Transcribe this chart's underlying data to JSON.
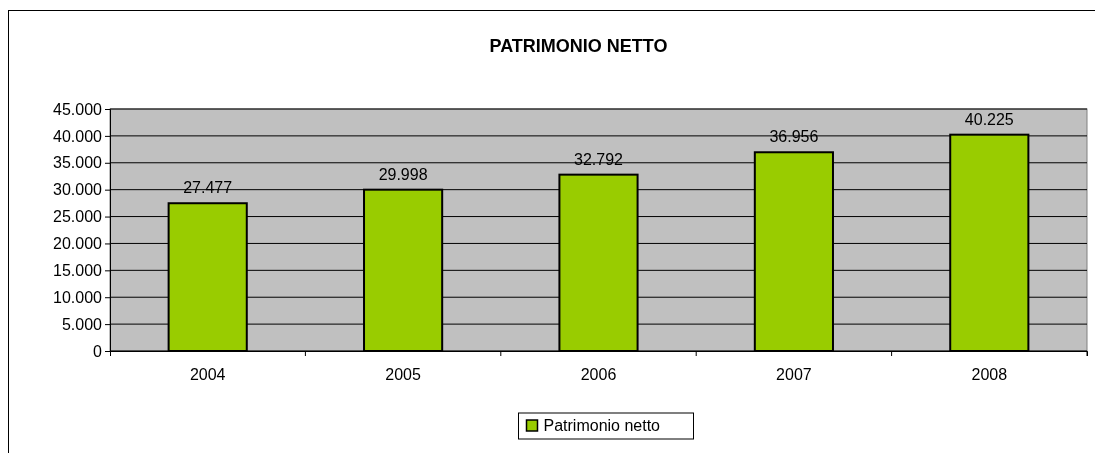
{
  "chart_data": {
    "type": "bar",
    "title": "PATRIMONIO NETTO",
    "categories": [
      "2004",
      "2005",
      "2006",
      "2007",
      "2008"
    ],
    "series": [
      {
        "name": "Patrimonio netto",
        "color": "#99cc00",
        "values": [
          27477,
          29998,
          32792,
          36956,
          40225
        ],
        "value_labels": [
          "27.477",
          "29.998",
          "32.792",
          "36.956",
          "40.225"
        ]
      }
    ],
    "ylim": [
      0,
      45000
    ],
    "yticks": [
      {
        "value": 0,
        "label": "0"
      },
      {
        "value": 5000,
        "label": "5.000"
      },
      {
        "value": 10000,
        "label": "10.000"
      },
      {
        "value": 15000,
        "label": "15.000"
      },
      {
        "value": 20000,
        "label": "20.000"
      },
      {
        "value": 25000,
        "label": "25.000"
      },
      {
        "value": 30000,
        "label": "30.000"
      },
      {
        "value": 35000,
        "label": "35.000"
      },
      {
        "value": 40000,
        "label": "40.000"
      },
      {
        "value": 45000,
        "label": "45.000"
      }
    ],
    "grid": "y",
    "legend": "bottom"
  }
}
